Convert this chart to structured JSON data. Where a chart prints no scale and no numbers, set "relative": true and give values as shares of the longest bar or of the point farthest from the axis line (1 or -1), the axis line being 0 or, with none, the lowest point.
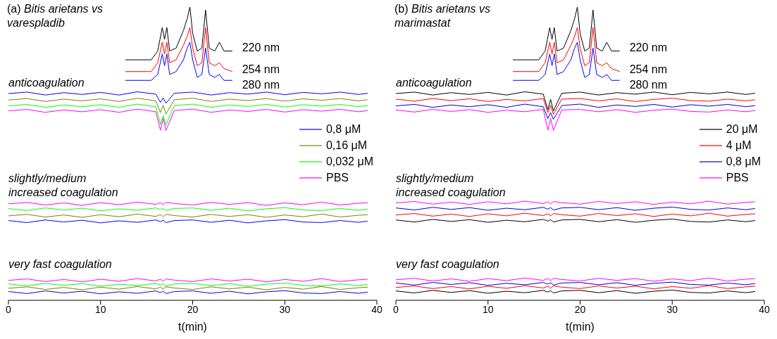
{
  "chart_data": [
    {
      "type": "line",
      "title": "(a) Bitis arietans vs varespladib",
      "xlabel": "t(min)",
      "xlim": [
        0,
        40
      ],
      "xticks": [
        0,
        10,
        20,
        30,
        40
      ],
      "relative": true,
      "legend": "right",
      "annotations": [
        "anticoagulation",
        "slightly/medium increased coagulation",
        "very fast coagulation"
      ],
      "x": [
        0,
        2,
        4,
        6,
        8,
        10,
        12,
        14,
        16,
        16.5,
        16.8,
        17.1,
        18,
        20,
        22,
        24,
        26,
        28,
        30,
        32,
        34,
        36,
        38,
        39
      ],
      "series": [
        {
          "name": "220 nm",
          "color": "#000000",
          "x": [
            12.7,
            15.5,
            16.2,
            16.7,
            16.95,
            17.2,
            17.5,
            18.2,
            19,
            19.4,
            19.7,
            20,
            20.5,
            21,
            21.4,
            21.8,
            22.4,
            22.9,
            23.4,
            24.3
          ],
          "values": [
            0.82,
            0.82,
            0.85,
            0.93,
            0.89,
            0.93,
            0.85,
            0.86,
            0.92,
            0.96,
            1.0,
            0.91,
            0.85,
            0.86,
            0.99,
            0.86,
            0.85,
            0.88,
            0.85,
            0.85
          ]
        },
        {
          "name": "254 nm",
          "color": "#ff0000",
          "x": [
            12.7,
            15.5,
            16.2,
            16.7,
            16.95,
            17.2,
            17.5,
            18.2,
            19,
            19.4,
            19.7,
            20,
            20.5,
            21,
            21.4,
            21.8,
            22.4,
            22.9,
            23.4,
            24.3
          ],
          "values": [
            0.78,
            0.78,
            0.81,
            0.88,
            0.84,
            0.88,
            0.81,
            0.82,
            0.87,
            0.9,
            0.93,
            0.86,
            0.8,
            0.81,
            0.93,
            0.81,
            0.8,
            0.81,
            0.79,
            0.78
          ]
        },
        {
          "name": "280 nm",
          "color": "#0000ff",
          "x": [
            12.7,
            15.5,
            16.2,
            16.7,
            16.95,
            17.2,
            17.5,
            18.2,
            19,
            19.4,
            19.7,
            20,
            20.5,
            21,
            21.4,
            21.8,
            22.4,
            22.9,
            23.4,
            24.3
          ],
          "values": [
            0.75,
            0.75,
            0.77,
            0.84,
            0.8,
            0.84,
            0.77,
            0.78,
            0.82,
            0.86,
            0.88,
            0.82,
            0.76,
            0.77,
            0.86,
            0.77,
            0.76,
            0.77,
            0.75,
            0.75
          ]
        },
        {
          "name": "0,8 μM",
          "color": "#0000ff",
          "values": [
            0.705,
            0.71,
            0.7,
            0.708,
            0.702,
            0.709,
            0.7,
            0.711,
            0.703,
            0.675,
            0.69,
            0.672,
            0.706,
            0.71,
            0.7,
            0.708,
            0.703,
            0.71,
            0.701,
            0.709,
            0.704,
            0.71,
            0.702,
            0.706
          ]
        },
        {
          "name": "0,16 μM",
          "color": "#808000",
          "values": [
            0.683,
            0.688,
            0.678,
            0.686,
            0.68,
            0.687,
            0.678,
            0.689,
            0.68,
            0.64,
            0.665,
            0.635,
            0.684,
            0.689,
            0.678,
            0.686,
            0.681,
            0.688,
            0.679,
            0.687,
            0.682,
            0.688,
            0.68,
            0.684
          ]
        },
        {
          "name": "0,032 μM",
          "color": "#00ff00",
          "values": [
            0.663,
            0.668,
            0.658,
            0.666,
            0.66,
            0.667,
            0.658,
            0.669,
            0.66,
            0.6,
            0.63,
            0.598,
            0.664,
            0.669,
            0.658,
            0.666,
            0.661,
            0.668,
            0.659,
            0.667,
            0.662,
            0.668,
            0.66,
            0.664
          ]
        },
        {
          "name": "PBS",
          "color": "#ff00ff",
          "values": [
            0.646,
            0.651,
            0.641,
            0.649,
            0.643,
            0.65,
            0.641,
            0.652,
            0.643,
            0.58,
            0.62,
            0.579,
            0.647,
            0.652,
            0.641,
            0.649,
            0.644,
            0.651,
            0.642,
            0.65,
            0.645,
            0.651,
            0.643,
            0.647
          ]
        },
        {
          "color": "#ff00ff",
          "values": [
            0.329,
            0.334,
            0.325,
            0.332,
            0.324,
            0.333,
            0.326,
            0.335,
            0.327,
            0.333,
            0.326,
            0.334,
            0.33,
            0.325,
            0.334,
            0.327,
            0.333,
            0.324,
            0.332,
            0.326,
            0.335,
            0.325,
            0.331,
            0.333
          ]
        },
        {
          "color": "#00ff00",
          "values": [
            0.313,
            0.306,
            0.315,
            0.308,
            0.314,
            0.305,
            0.312,
            0.307,
            0.315,
            0.309,
            0.314,
            0.306,
            0.313,
            0.315,
            0.307,
            0.314,
            0.305,
            0.312,
            0.316,
            0.308,
            0.306,
            0.313,
            0.307,
            0.311
          ]
        },
        {
          "color": "#808000",
          "values": [
            0.288,
            0.293,
            0.284,
            0.291,
            0.283,
            0.292,
            0.285,
            0.294,
            0.286,
            0.292,
            0.285,
            0.293,
            0.289,
            0.284,
            0.293,
            0.286,
            0.292,
            0.283,
            0.291,
            0.285,
            0.294,
            0.284,
            0.29,
            0.292
          ]
        },
        {
          "color": "#0000ff",
          "values": [
            0.272,
            0.265,
            0.274,
            0.267,
            0.273,
            0.264,
            0.271,
            0.266,
            0.274,
            0.268,
            0.273,
            0.265,
            0.272,
            0.274,
            0.266,
            0.273,
            0.264,
            0.271,
            0.275,
            0.267,
            0.265,
            0.272,
            0.266,
            0.27
          ]
        },
        {
          "color": "#ff00ff",
          "values": [
            0.068,
            0.073,
            0.064,
            0.071,
            0.063,
            0.072,
            0.065,
            0.074,
            0.066,
            0.072,
            0.065,
            0.073,
            0.069,
            0.064,
            0.073,
            0.066,
            0.072,
            0.063,
            0.071,
            0.065,
            0.074,
            0.064,
            0.07,
            0.072
          ]
        },
        {
          "color": "#00ff00",
          "values": [
            0.056,
            0.049,
            0.058,
            0.051,
            0.057,
            0.048,
            0.055,
            0.05,
            0.058,
            0.052,
            0.057,
            0.049,
            0.056,
            0.058,
            0.05,
            0.057,
            0.048,
            0.055,
            0.059,
            0.051,
            0.049,
            0.056,
            0.05,
            0.054
          ]
        },
        {
          "color": "#808000",
          "values": [
            0.041,
            0.046,
            0.037,
            0.044,
            0.036,
            0.045,
            0.038,
            0.047,
            0.039,
            0.045,
            0.038,
            0.046,
            0.042,
            0.037,
            0.046,
            0.039,
            0.045,
            0.036,
            0.044,
            0.038,
            0.047,
            0.037,
            0.043,
            0.045
          ]
        },
        {
          "color": "#0000ff",
          "values": [
            0.03,
            0.023,
            0.032,
            0.025,
            0.031,
            0.022,
            0.029,
            0.024,
            0.032,
            0.026,
            0.031,
            0.023,
            0.03,
            0.032,
            0.024,
            0.031,
            0.022,
            0.029,
            0.033,
            0.025,
            0.023,
            0.03,
            0.024,
            0.028
          ]
        }
      ]
    },
    {
      "type": "line",
      "title": "(b) Bitis arietans vs marimastat",
      "xlabel": "t(min)",
      "xlim": [
        0,
        40
      ],
      "xticks": [
        0,
        10,
        20,
        30,
        40
      ],
      "relative": true,
      "legend": "right",
      "annotations": [
        "anticoagulation",
        "slightly/medium increased coagulation",
        "very fast coagulation"
      ],
      "x": [
        0,
        2,
        4,
        6,
        8,
        10,
        12,
        14,
        16,
        16.5,
        16.8,
        17.1,
        18,
        20,
        22,
        24,
        26,
        28,
        30,
        32,
        34,
        36,
        38,
        39
      ],
      "series": [
        {
          "name": "220 nm",
          "color": "#000000",
          "x": [
            12.7,
            15.5,
            16.2,
            16.7,
            16.95,
            17.2,
            17.5,
            18.2,
            19,
            19.4,
            19.7,
            20,
            20.5,
            21,
            21.4,
            21.8,
            22.4,
            22.9,
            23.4,
            24.3
          ],
          "values": [
            0.82,
            0.82,
            0.85,
            0.93,
            0.89,
            0.93,
            0.85,
            0.86,
            0.92,
            0.96,
            1.0,
            0.91,
            0.85,
            0.86,
            0.99,
            0.86,
            0.85,
            0.88,
            0.85,
            0.85
          ]
        },
        {
          "name": "254 nm",
          "color": "#ff0000",
          "x": [
            12.7,
            15.5,
            16.2,
            16.7,
            16.95,
            17.2,
            17.5,
            18.2,
            19,
            19.4,
            19.7,
            20,
            20.5,
            21,
            21.4,
            21.8,
            22.4,
            22.9,
            23.4,
            24.3
          ],
          "values": [
            0.78,
            0.78,
            0.81,
            0.88,
            0.84,
            0.88,
            0.81,
            0.82,
            0.87,
            0.9,
            0.93,
            0.86,
            0.8,
            0.81,
            0.93,
            0.81,
            0.8,
            0.81,
            0.79,
            0.78
          ]
        },
        {
          "name": "280 nm",
          "color": "#0000ff",
          "x": [
            12.7,
            15.5,
            16.2,
            16.7,
            16.95,
            17.2,
            17.5,
            18.2,
            19,
            19.4,
            19.7,
            20,
            20.5,
            21,
            21.4,
            21.8,
            22.4,
            22.9,
            23.4,
            24.3
          ],
          "values": [
            0.75,
            0.75,
            0.77,
            0.84,
            0.8,
            0.84,
            0.77,
            0.78,
            0.82,
            0.86,
            0.88,
            0.82,
            0.76,
            0.77,
            0.86,
            0.77,
            0.76,
            0.77,
            0.75,
            0.75
          ]
        },
        {
          "name": "20 μM",
          "color": "#000000",
          "values": [
            0.705,
            0.71,
            0.7,
            0.708,
            0.702,
            0.709,
            0.7,
            0.711,
            0.703,
            0.65,
            0.685,
            0.646,
            0.706,
            0.71,
            0.7,
            0.708,
            0.703,
            0.71,
            0.701,
            0.709,
            0.704,
            0.71,
            0.702,
            0.706
          ]
        },
        {
          "name": "4 μM",
          "color": "#ff0000",
          "values": [
            0.686,
            0.679,
            0.688,
            0.681,
            0.687,
            0.678,
            0.685,
            0.68,
            0.688,
            0.64,
            0.665,
            0.634,
            0.686,
            0.688,
            0.68,
            0.687,
            0.678,
            0.685,
            0.689,
            0.681,
            0.679,
            0.686,
            0.68,
            0.684
          ]
        },
        {
          "name": "0,8 μM",
          "color": "#0000cc",
          "values": [
            0.663,
            0.668,
            0.658,
            0.666,
            0.66,
            0.667,
            0.658,
            0.669,
            0.66,
            0.62,
            0.64,
            0.617,
            0.664,
            0.669,
            0.658,
            0.666,
            0.661,
            0.668,
            0.659,
            0.667,
            0.662,
            0.668,
            0.66,
            0.664
          ]
        },
        {
          "name": "PBS",
          "color": "#ff00ff",
          "values": [
            0.649,
            0.642,
            0.651,
            0.644,
            0.65,
            0.641,
            0.648,
            0.643,
            0.651,
            0.58,
            0.62,
            0.579,
            0.649,
            0.651,
            0.643,
            0.65,
            0.641,
            0.648,
            0.652,
            0.644,
            0.642,
            0.649,
            0.643,
            0.647
          ]
        },
        {
          "color": "#ff00ff",
          "values": [
            0.332,
            0.337,
            0.328,
            0.335,
            0.327,
            0.336,
            0.329,
            0.338,
            0.33,
            0.336,
            0.329,
            0.337,
            0.333,
            0.328,
            0.337,
            0.33,
            0.336,
            0.327,
            0.335,
            0.329,
            0.338,
            0.328,
            0.334,
            0.336
          ]
        },
        {
          "color": "#0000cc",
          "values": [
            0.315,
            0.308,
            0.317,
            0.31,
            0.316,
            0.307,
            0.314,
            0.309,
            0.317,
            0.311,
            0.316,
            0.308,
            0.315,
            0.317,
            0.309,
            0.316,
            0.307,
            0.314,
            0.318,
            0.31,
            0.308,
            0.315,
            0.309,
            0.313
          ]
        },
        {
          "color": "#ff0000",
          "values": [
            0.291,
            0.296,
            0.287,
            0.294,
            0.286,
            0.295,
            0.288,
            0.297,
            0.289,
            0.295,
            0.288,
            0.296,
            0.292,
            0.287,
            0.296,
            0.289,
            0.295,
            0.286,
            0.294,
            0.288,
            0.297,
            0.287,
            0.293,
            0.295
          ]
        },
        {
          "color": "#000000",
          "values": [
            0.274,
            0.267,
            0.276,
            0.269,
            0.275,
            0.266,
            0.273,
            0.268,
            0.276,
            0.27,
            0.275,
            0.267,
            0.274,
            0.276,
            0.268,
            0.275,
            0.266,
            0.273,
            0.277,
            0.269,
            0.267,
            0.274,
            0.268,
            0.272
          ]
        },
        {
          "color": "#ff00ff",
          "values": [
            0.07,
            0.075,
            0.066,
            0.073,
            0.065,
            0.074,
            0.067,
            0.076,
            0.068,
            0.074,
            0.067,
            0.075,
            0.071,
            0.066,
            0.075,
            0.068,
            0.074,
            0.065,
            0.073,
            0.067,
            0.076,
            0.066,
            0.072,
            0.074
          ]
        },
        {
          "color": "#0000cc",
          "values": [
            0.059,
            0.052,
            0.061,
            0.054,
            0.06,
            0.051,
            0.058,
            0.053,
            0.061,
            0.055,
            0.06,
            0.052,
            0.059,
            0.061,
            0.053,
            0.06,
            0.051,
            0.058,
            0.062,
            0.054,
            0.052,
            0.059,
            0.053,
            0.057
          ]
        },
        {
          "color": "#ff0000",
          "values": [
            0.044,
            0.049,
            0.04,
            0.047,
            0.039,
            0.048,
            0.041,
            0.05,
            0.042,
            0.048,
            0.041,
            0.049,
            0.045,
            0.04,
            0.049,
            0.042,
            0.048,
            0.039,
            0.047,
            0.041,
            0.05,
            0.04,
            0.046,
            0.048
          ]
        },
        {
          "color": "#000000",
          "values": [
            0.032,
            0.025,
            0.034,
            0.027,
            0.033,
            0.024,
            0.031,
            0.026,
            0.034,
            0.028,
            0.033,
            0.025,
            0.032,
            0.034,
            0.026,
            0.033,
            0.024,
            0.031,
            0.035,
            0.027,
            0.025,
            0.032,
            0.026,
            0.03
          ]
        }
      ]
    }
  ]
}
